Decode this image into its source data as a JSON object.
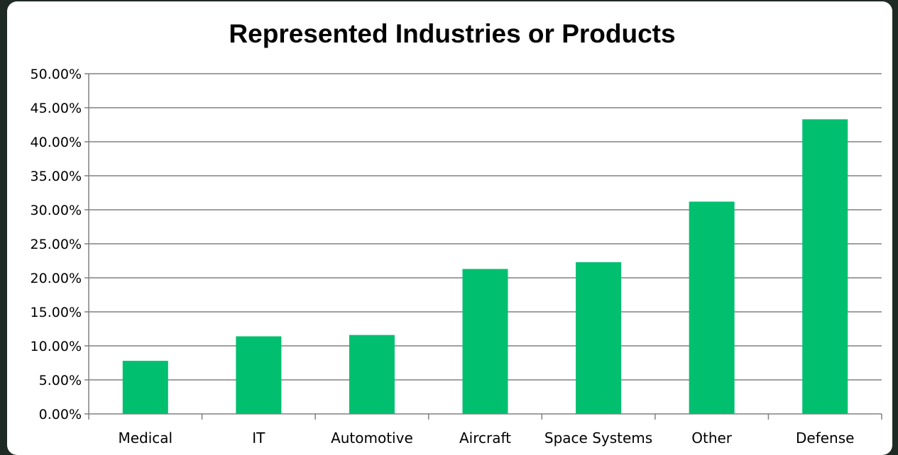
{
  "chart_data": {
    "type": "bar",
    "title": "Represented Industries or Products",
    "xlabel": "",
    "ylabel": "",
    "categories": [
      "Medical",
      "IT",
      "Automotive",
      "Aircraft",
      "Space Systems",
      "Other",
      "Defense"
    ],
    "values": [
      7.8,
      11.4,
      11.6,
      21.3,
      22.3,
      31.2,
      43.3
    ],
    "ylim": [
      0,
      50
    ],
    "yticks": [
      "0.00%",
      "5.00%",
      "10.00%",
      "15.00%",
      "20.00%",
      "25.00%",
      "30.00%",
      "35.00%",
      "40.00%",
      "45.00%",
      "50.00%"
    ],
    "grid": true,
    "legend": "none",
    "bar_color": "#00bf6f",
    "gridline_color": "#808080"
  }
}
